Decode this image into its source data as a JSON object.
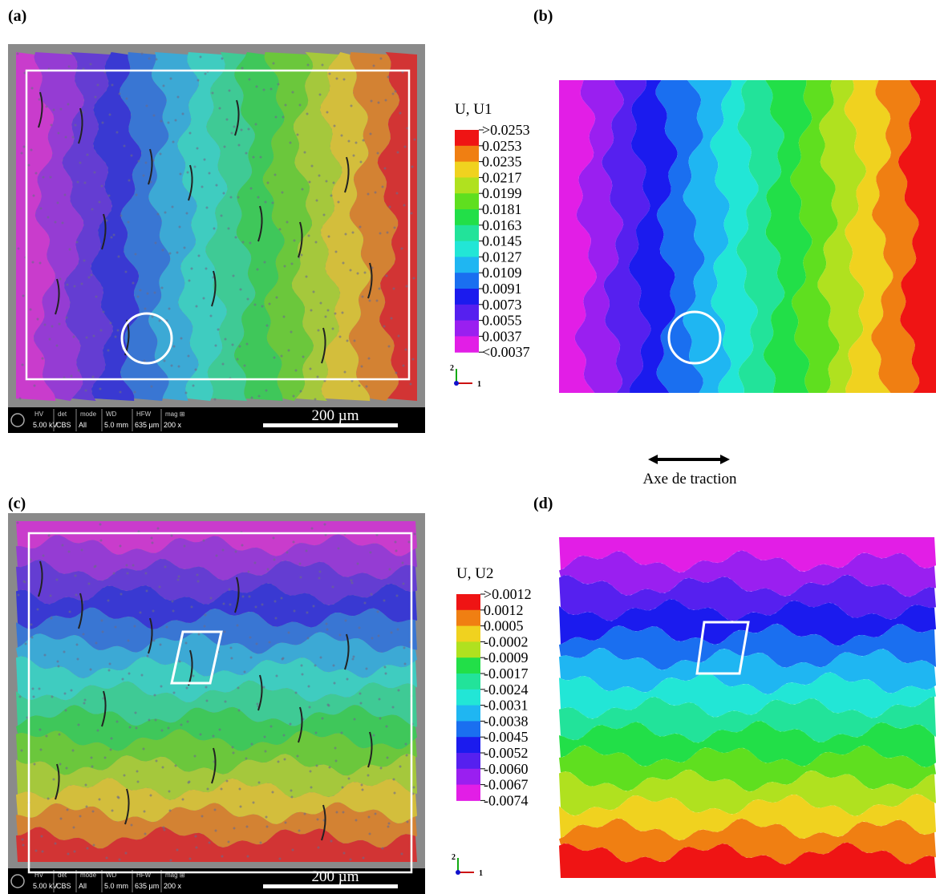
{
  "labels": {
    "a": "(a)",
    "b": "(b)",
    "c": "(c)",
    "d": "(d)"
  },
  "sem_info": {
    "headers": [
      "HV",
      "det",
      "mode",
      "WD",
      "HFW",
      "mag ⊞"
    ],
    "values": [
      "5.00 kV",
      "CBS",
      "All",
      "5.0 mm",
      "635 µm",
      "200 x"
    ]
  },
  "scale_bar": "200 µm",
  "legend_u1": {
    "title": "U, U1",
    "labels": [
      ">0.0253",
      "0.0253",
      "0.0235",
      "0.0217",
      "0.0199",
      "0.0181",
      "0.0163",
      "0.0145",
      "0.0127",
      "0.0109",
      "0.0091",
      "0.0073",
      "0.0055",
      "0.0037",
      "<0.0037"
    ]
  },
  "legend_u2": {
    "title": "U, U2",
    "labels": [
      ">0.0012",
      "0.0012",
      "0.0005",
      "-0.0002",
      "-0.0009",
      "-0.0017",
      "-0.0024",
      "-0.0031",
      "-0.0038",
      "-0.0045",
      "-0.0052",
      "-0.0060",
      "-0.0067",
      "-0.0074"
    ]
  },
  "triad": {
    "vertical": "2",
    "horizontal": "1"
  },
  "axis_note": "Axe de traction"
}
